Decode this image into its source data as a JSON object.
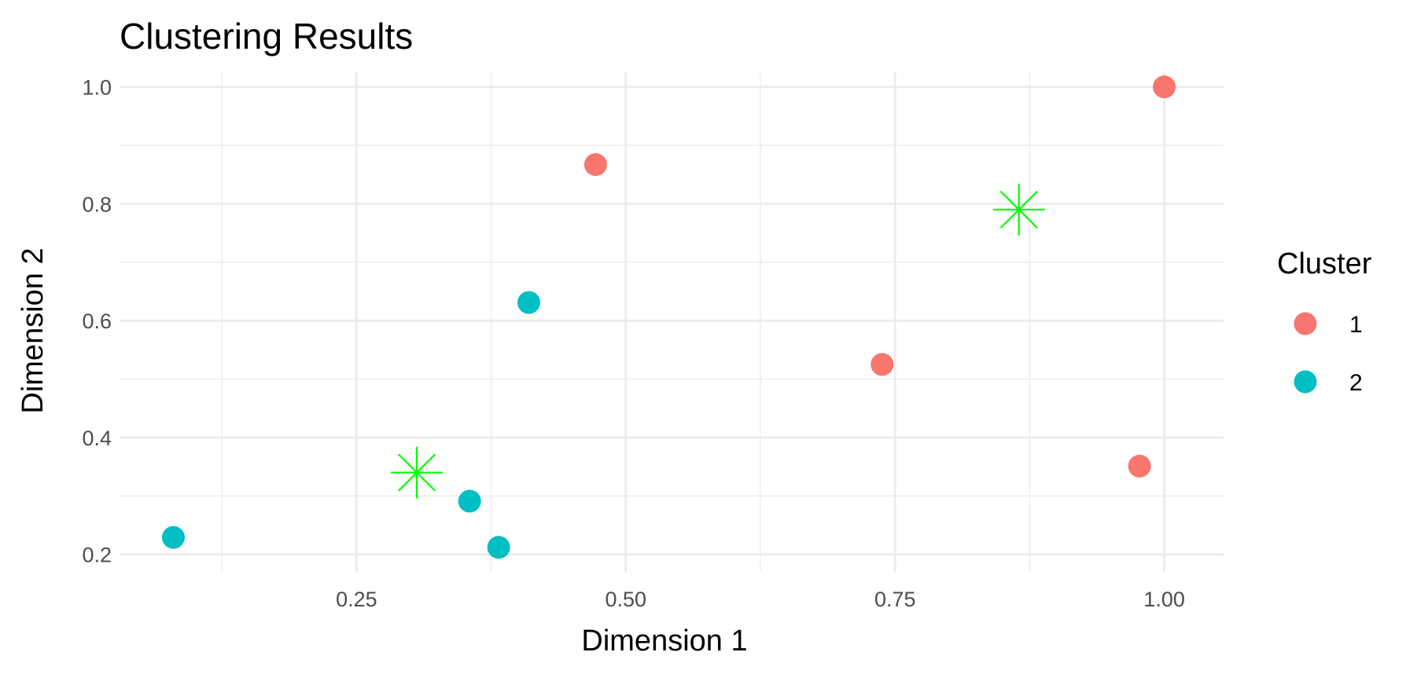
{
  "chart_data": {
    "type": "scatter",
    "title": "Clustering Results",
    "xlabel": "Dimension 1",
    "ylabel": "Dimension 2",
    "xlim": [
      0.03,
      1.055
    ],
    "ylim": [
      0.17,
      1.025
    ],
    "x_ticks": [
      0.25,
      0.5,
      0.75,
      1.0
    ],
    "x_tick_labels": [
      "0.25",
      "0.50",
      "0.75",
      "1.00"
    ],
    "y_ticks": [
      0.2,
      0.4,
      0.6,
      0.8,
      1.0
    ],
    "y_tick_labels": [
      "0.2",
      "0.4",
      "0.6",
      "0.8",
      "1.0"
    ],
    "x_minor_ticks": [
      0.125,
      0.375,
      0.625,
      0.875
    ],
    "y_minor_ticks": [
      0.3,
      0.5,
      0.7,
      0.9
    ],
    "grid": true,
    "legend": {
      "title": "Cluster",
      "position": "right",
      "entries": [
        {
          "label": "1",
          "color": "#F8766D"
        },
        {
          "label": "2",
          "color": "#00BFC4"
        }
      ]
    },
    "series": [
      {
        "name": "1",
        "color": "#F8766D",
        "points": [
          {
            "x": 0.472,
            "y": 0.867
          },
          {
            "x": 0.738,
            "y": 0.525
          },
          {
            "x": 0.977,
            "y": 0.351
          },
          {
            "x": 1.0,
            "y": 1.0
          }
        ]
      },
      {
        "name": "2",
        "color": "#00BFC4",
        "points": [
          {
            "x": 0.08,
            "y": 0.229
          },
          {
            "x": 0.355,
            "y": 0.291
          },
          {
            "x": 0.382,
            "y": 0.212
          },
          {
            "x": 0.41,
            "y": 0.631
          }
        ]
      }
    ],
    "centers": {
      "color": "#00FF00",
      "marker": "asterisk",
      "points": [
        {
          "x": 0.306,
          "y": 0.34
        },
        {
          "x": 0.865,
          "y": 0.79
        }
      ]
    }
  }
}
